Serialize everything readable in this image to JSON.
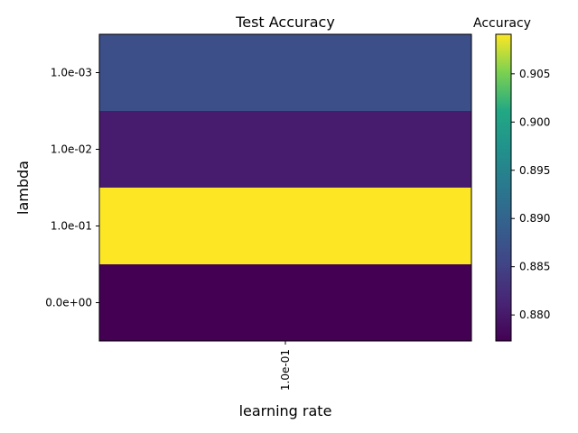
{
  "chart_data": {
    "type": "heatmap",
    "title": "Test Accuracy",
    "xlabel": "learning rate",
    "ylabel": "lambda",
    "x_categories": [
      "1.0e-01"
    ],
    "y_categories": [
      "1.0e-03",
      "1.0e-02",
      "1.0e-01",
      "0.0e+00"
    ],
    "values": [
      [
        0.8868
      ],
      [
        0.8803
      ],
      [
        0.9091
      ],
      [
        0.8773
      ]
    ],
    "colorbar": {
      "label": "Accuracy",
      "min": 0.8773,
      "max": 0.9091,
      "ticks": [
        0.88,
        0.885,
        0.89,
        0.895,
        0.9,
        0.905
      ],
      "tick_labels": [
        "0.880",
        "0.885",
        "0.890",
        "0.895",
        "0.900",
        "0.905"
      ],
      "colormap": "viridis"
    },
    "grid": false
  }
}
